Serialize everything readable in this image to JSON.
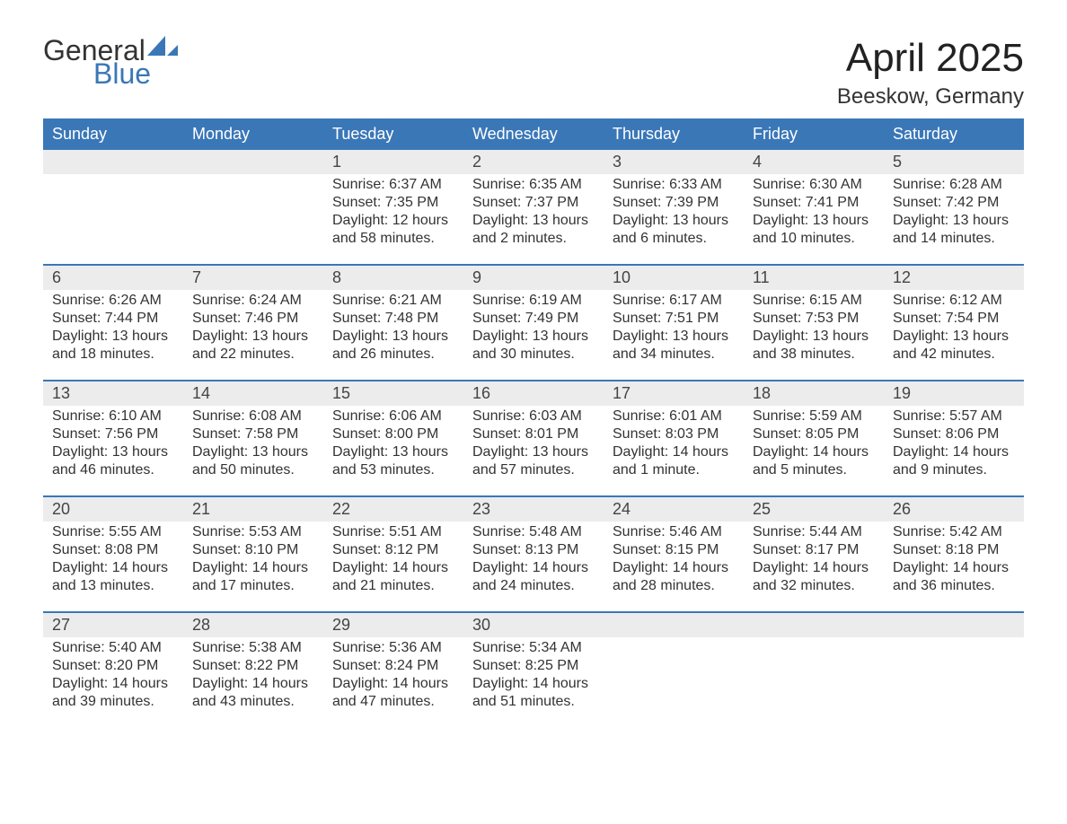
{
  "brand": {
    "word1": "General",
    "word2": "Blue",
    "accent_color": "#3a77b7"
  },
  "header": {
    "month_title": "April 2025",
    "location": "Beeskow, Germany"
  },
  "colors": {
    "header_bg": "#3a77b7",
    "header_text": "#ffffff",
    "daynum_bg": "#ececec",
    "week_divider": "#3a77b7",
    "body_text": "#333333",
    "page_bg": "#ffffff"
  },
  "typography": {
    "title_fontsize": 44,
    "location_fontsize": 24,
    "dow_fontsize": 18,
    "daynum_fontsize": 18,
    "body_fontsize": 16,
    "logo_fontsize": 32,
    "font_family": "Segoe UI"
  },
  "calendar": {
    "days_of_week": [
      "Sunday",
      "Monday",
      "Tuesday",
      "Wednesday",
      "Thursday",
      "Friday",
      "Saturday"
    ],
    "weeks": [
      [
        null,
        null,
        {
          "n": "1",
          "sunrise": "Sunrise: 6:37 AM",
          "sunset": "Sunset: 7:35 PM",
          "day1": "Daylight: 12 hours",
          "day2": "and 58 minutes."
        },
        {
          "n": "2",
          "sunrise": "Sunrise: 6:35 AM",
          "sunset": "Sunset: 7:37 PM",
          "day1": "Daylight: 13 hours",
          "day2": "and 2 minutes."
        },
        {
          "n": "3",
          "sunrise": "Sunrise: 6:33 AM",
          "sunset": "Sunset: 7:39 PM",
          "day1": "Daylight: 13 hours",
          "day2": "and 6 minutes."
        },
        {
          "n": "4",
          "sunrise": "Sunrise: 6:30 AM",
          "sunset": "Sunset: 7:41 PM",
          "day1": "Daylight: 13 hours",
          "day2": "and 10 minutes."
        },
        {
          "n": "5",
          "sunrise": "Sunrise: 6:28 AM",
          "sunset": "Sunset: 7:42 PM",
          "day1": "Daylight: 13 hours",
          "day2": "and 14 minutes."
        }
      ],
      [
        {
          "n": "6",
          "sunrise": "Sunrise: 6:26 AM",
          "sunset": "Sunset: 7:44 PM",
          "day1": "Daylight: 13 hours",
          "day2": "and 18 minutes."
        },
        {
          "n": "7",
          "sunrise": "Sunrise: 6:24 AM",
          "sunset": "Sunset: 7:46 PM",
          "day1": "Daylight: 13 hours",
          "day2": "and 22 minutes."
        },
        {
          "n": "8",
          "sunrise": "Sunrise: 6:21 AM",
          "sunset": "Sunset: 7:48 PM",
          "day1": "Daylight: 13 hours",
          "day2": "and 26 minutes."
        },
        {
          "n": "9",
          "sunrise": "Sunrise: 6:19 AM",
          "sunset": "Sunset: 7:49 PM",
          "day1": "Daylight: 13 hours",
          "day2": "and 30 minutes."
        },
        {
          "n": "10",
          "sunrise": "Sunrise: 6:17 AM",
          "sunset": "Sunset: 7:51 PM",
          "day1": "Daylight: 13 hours",
          "day2": "and 34 minutes."
        },
        {
          "n": "11",
          "sunrise": "Sunrise: 6:15 AM",
          "sunset": "Sunset: 7:53 PM",
          "day1": "Daylight: 13 hours",
          "day2": "and 38 minutes."
        },
        {
          "n": "12",
          "sunrise": "Sunrise: 6:12 AM",
          "sunset": "Sunset: 7:54 PM",
          "day1": "Daylight: 13 hours",
          "day2": "and 42 minutes."
        }
      ],
      [
        {
          "n": "13",
          "sunrise": "Sunrise: 6:10 AM",
          "sunset": "Sunset: 7:56 PM",
          "day1": "Daylight: 13 hours",
          "day2": "and 46 minutes."
        },
        {
          "n": "14",
          "sunrise": "Sunrise: 6:08 AM",
          "sunset": "Sunset: 7:58 PM",
          "day1": "Daylight: 13 hours",
          "day2": "and 50 minutes."
        },
        {
          "n": "15",
          "sunrise": "Sunrise: 6:06 AM",
          "sunset": "Sunset: 8:00 PM",
          "day1": "Daylight: 13 hours",
          "day2": "and 53 minutes."
        },
        {
          "n": "16",
          "sunrise": "Sunrise: 6:03 AM",
          "sunset": "Sunset: 8:01 PM",
          "day1": "Daylight: 13 hours",
          "day2": "and 57 minutes."
        },
        {
          "n": "17",
          "sunrise": "Sunrise: 6:01 AM",
          "sunset": "Sunset: 8:03 PM",
          "day1": "Daylight: 14 hours",
          "day2": "and 1 minute."
        },
        {
          "n": "18",
          "sunrise": "Sunrise: 5:59 AM",
          "sunset": "Sunset: 8:05 PM",
          "day1": "Daylight: 14 hours",
          "day2": "and 5 minutes."
        },
        {
          "n": "19",
          "sunrise": "Sunrise: 5:57 AM",
          "sunset": "Sunset: 8:06 PM",
          "day1": "Daylight: 14 hours",
          "day2": "and 9 minutes."
        }
      ],
      [
        {
          "n": "20",
          "sunrise": "Sunrise: 5:55 AM",
          "sunset": "Sunset: 8:08 PM",
          "day1": "Daylight: 14 hours",
          "day2": "and 13 minutes."
        },
        {
          "n": "21",
          "sunrise": "Sunrise: 5:53 AM",
          "sunset": "Sunset: 8:10 PM",
          "day1": "Daylight: 14 hours",
          "day2": "and 17 minutes."
        },
        {
          "n": "22",
          "sunrise": "Sunrise: 5:51 AM",
          "sunset": "Sunset: 8:12 PM",
          "day1": "Daylight: 14 hours",
          "day2": "and 21 minutes."
        },
        {
          "n": "23",
          "sunrise": "Sunrise: 5:48 AM",
          "sunset": "Sunset: 8:13 PM",
          "day1": "Daylight: 14 hours",
          "day2": "and 24 minutes."
        },
        {
          "n": "24",
          "sunrise": "Sunrise: 5:46 AM",
          "sunset": "Sunset: 8:15 PM",
          "day1": "Daylight: 14 hours",
          "day2": "and 28 minutes."
        },
        {
          "n": "25",
          "sunrise": "Sunrise: 5:44 AM",
          "sunset": "Sunset: 8:17 PM",
          "day1": "Daylight: 14 hours",
          "day2": "and 32 minutes."
        },
        {
          "n": "26",
          "sunrise": "Sunrise: 5:42 AM",
          "sunset": "Sunset: 8:18 PM",
          "day1": "Daylight: 14 hours",
          "day2": "and 36 minutes."
        }
      ],
      [
        {
          "n": "27",
          "sunrise": "Sunrise: 5:40 AM",
          "sunset": "Sunset: 8:20 PM",
          "day1": "Daylight: 14 hours",
          "day2": "and 39 minutes."
        },
        {
          "n": "28",
          "sunrise": "Sunrise: 5:38 AM",
          "sunset": "Sunset: 8:22 PM",
          "day1": "Daylight: 14 hours",
          "day2": "and 43 minutes."
        },
        {
          "n": "29",
          "sunrise": "Sunrise: 5:36 AM",
          "sunset": "Sunset: 8:24 PM",
          "day1": "Daylight: 14 hours",
          "day2": "and 47 minutes."
        },
        {
          "n": "30",
          "sunrise": "Sunrise: 5:34 AM",
          "sunset": "Sunset: 8:25 PM",
          "day1": "Daylight: 14 hours",
          "day2": "and 51 minutes."
        },
        null,
        null,
        null
      ]
    ]
  }
}
